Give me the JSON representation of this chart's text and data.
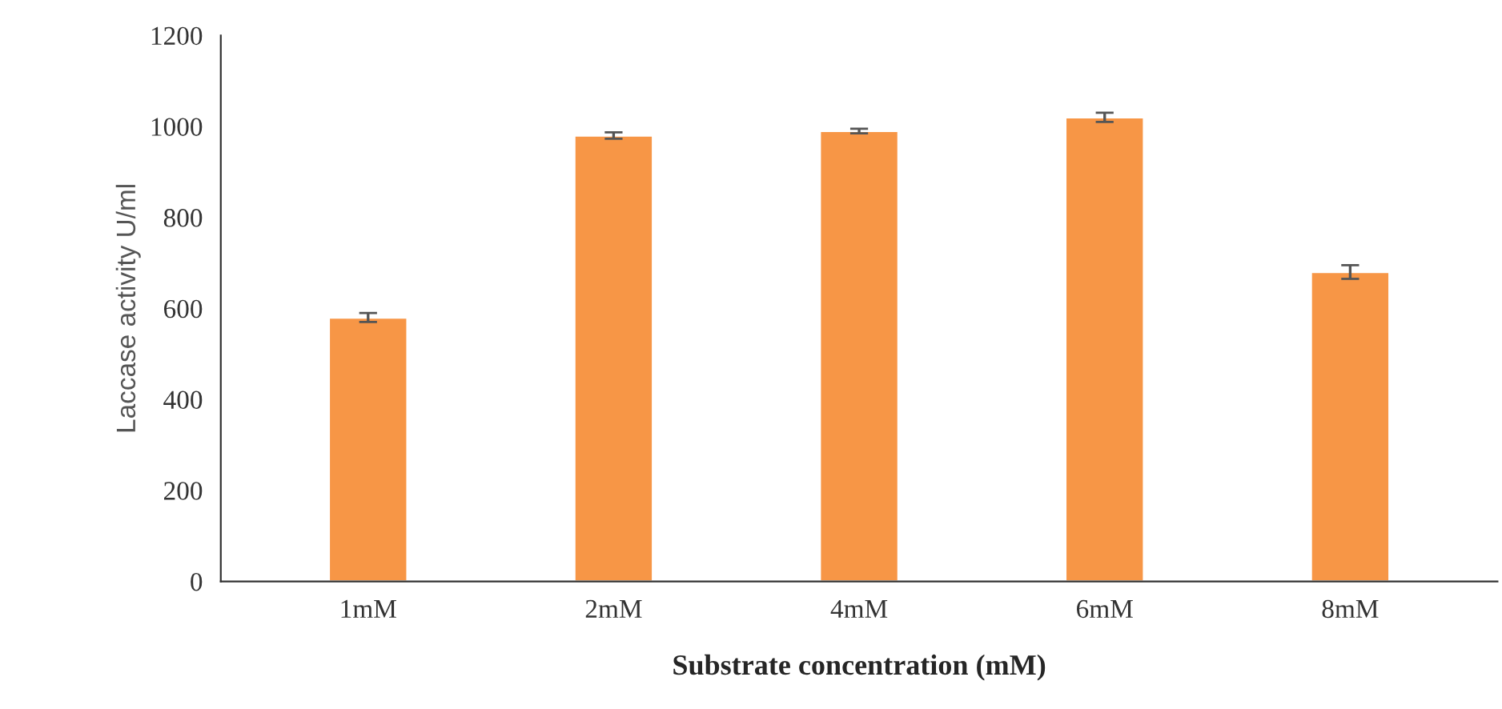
{
  "chart_data": {
    "type": "bar",
    "xlabel": "Substrate concentration (mM)",
    "ylabel": "Laccase activity U/ml",
    "categories": [
      "1mM",
      "2mM",
      "4mM",
      "6mM",
      "8mM"
    ],
    "values": [
      580,
      980,
      990,
      1020,
      680
    ],
    "errors": [
      10,
      7,
      5,
      10,
      15
    ],
    "color": "#f79646",
    "ylim": [
      0,
      1200
    ],
    "yticks": [
      0,
      200,
      400,
      600,
      800,
      1000,
      1200
    ],
    "grid": false,
    "legend": false
  }
}
